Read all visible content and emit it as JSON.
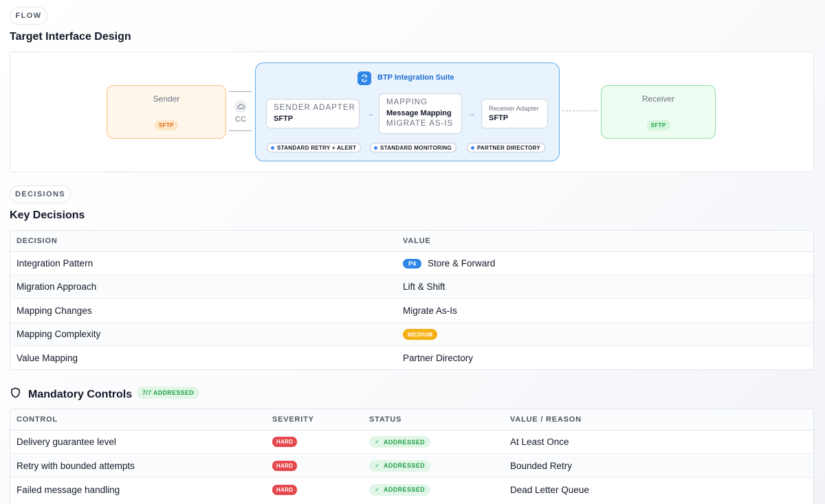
{
  "flow": {
    "section_label": "FLOW",
    "title": "Target Interface Design",
    "sender": {
      "name": "Sender",
      "protocol": "SFTP"
    },
    "receiver": {
      "name": "Receiver",
      "protocol": "SFTP"
    },
    "connector_label": "CC",
    "suite_title": "BTP Integration Suite",
    "sender_adapter": {
      "caption": "SENDER ADAPTER",
      "value": "SFTP"
    },
    "mapping": {
      "caption": "MAPPING",
      "value": "Message Mapping",
      "note": "MIGRATE AS-IS"
    },
    "receiver_adapter": {
      "caption": "Receiver Adapter",
      "value": "SFTP"
    },
    "chips": [
      "STANDARD RETRY + ALERT",
      "STANDARD MONITORING",
      "PARTNER DIRECTORY"
    ],
    "colors": {
      "suite_accent": "#2f86e6",
      "sender_accent": "#f7c07a",
      "receiver_accent": "#8fe0a3"
    }
  },
  "decisions": {
    "section_label": "DECISIONS",
    "title": "Key Decisions",
    "columns": [
      "DECISION",
      "VALUE"
    ],
    "rows": [
      {
        "decision": "Integration Pattern",
        "badge": "P4",
        "value": "Store & Forward"
      },
      {
        "decision": "Migration Approach",
        "value": "Lift & Shift"
      },
      {
        "decision": "Mapping Changes",
        "value": "Migrate As-Is"
      },
      {
        "decision": "Mapping Complexity",
        "badge": "MEDIUM"
      },
      {
        "decision": "Value Mapping",
        "value": "Partner Directory"
      }
    ]
  },
  "controls": {
    "title": "Mandatory Controls",
    "count_badge": "7/7 ADDRESSED",
    "columns": [
      "CONTROL",
      "SEVERITY",
      "STATUS",
      "VALUE / REASON"
    ],
    "rows": [
      {
        "control": "Delivery guarantee level",
        "severity": "HARD",
        "status": "ADDRESSED",
        "value": "At Least Once"
      },
      {
        "control": "Retry with bounded attempts",
        "severity": "HARD",
        "status": "ADDRESSED",
        "value": "Bounded Retry"
      },
      {
        "control": "Failed message handling",
        "severity": "HARD",
        "status": "ADDRESSED",
        "value": "Dead Letter Queue"
      }
    ],
    "icon": "shield-icon"
  }
}
